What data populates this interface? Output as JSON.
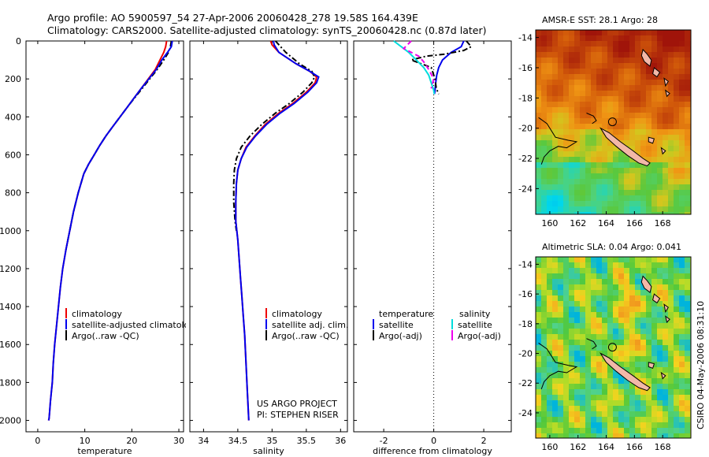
{
  "header": {
    "line1": "Argo profile: AO 5900597_54 27-Apr-2006 20060428_278 19.58S 164.439E",
    "line2": "Climatology: CARS2000. Satellite-adjusted climatology: synTS_20060428.nc (0.87d later)"
  },
  "side_stamp": "CSIRO 04-May-2006 08:31:10",
  "project": {
    "line1": "US ARGO PROJECT",
    "line2": "PI: STEPHEN RISER"
  },
  "chart_data": [
    {
      "id": "temperature",
      "type": "line",
      "xlabel": "temperature",
      "xlim": [
        -2.5,
        31
      ],
      "xticks": [
        0,
        10,
        20,
        30
      ],
      "ylim": [
        2060,
        0
      ],
      "yticks": [
        0,
        200,
        400,
        600,
        800,
        1000,
        1200,
        1400,
        1600,
        1800,
        2000
      ],
      "legend": [
        "climatology",
        "satellite-adjusted climatology",
        "Argo(..raw -QC)"
      ],
      "series": [
        {
          "name": "climatology",
          "color": "#ee0000",
          "dash": "",
          "x": [
            27.4,
            27.2,
            26.8,
            26.0,
            25.0,
            23.5,
            22.0,
            20.5,
            19.0,
            17.5,
            16.0,
            14.5,
            13.2,
            12.0,
            10.8,
            9.8,
            8.6,
            7.6,
            6.8,
            6.0,
            5.3,
            4.8,
            4.4,
            4.0,
            3.6,
            3.3,
            3.1,
            2.9,
            2.7,
            2.55,
            2.4,
            2.3
          ],
          "y": [
            0,
            30,
            60,
            100,
            150,
            200,
            250,
            300,
            350,
            400,
            450,
            500,
            550,
            600,
            650,
            700,
            800,
            900,
            1000,
            1100,
            1200,
            1300,
            1400,
            1500,
            1600,
            1700,
            1800,
            1850,
            1900,
            1950,
            1990,
            2000
          ]
        },
        {
          "name": "satellite-adjusted climatology",
          "color": "#0000ee",
          "dash": "",
          "x": [
            28.6,
            28.4,
            27.6,
            26.4,
            25.2,
            23.6,
            22.0,
            20.5,
            19.0,
            17.5,
            16.0,
            14.5,
            13.2,
            12.0,
            10.8,
            9.8,
            8.6,
            7.6,
            6.8,
            6.0,
            5.3,
            4.8,
            4.4,
            4.0,
            3.6,
            3.3,
            3.1,
            2.9,
            2.7,
            2.55,
            2.4,
            2.3
          ],
          "y": [
            0,
            30,
            60,
            100,
            150,
            200,
            250,
            300,
            350,
            400,
            450,
            500,
            550,
            600,
            650,
            700,
            800,
            900,
            1000,
            1100,
            1200,
            1300,
            1400,
            1500,
            1600,
            1700,
            1800,
            1850,
            1900,
            1950,
            1990,
            2000
          ]
        },
        {
          "name": "Argo(..raw -QC)",
          "color": "#000000",
          "dash": "7,3,2,3",
          "x": [
            28.4,
            28.2,
            27.8,
            26.8,
            25.4,
            23.8,
            22.2,
            20.6,
            19.0,
            17.5,
            16.0,
            14.5,
            13.2,
            12.0,
            10.8,
            9.8,
            8.6,
            7.6,
            6.8,
            6.0
          ],
          "y": [
            0,
            30,
            60,
            100,
            150,
            200,
            250,
            300,
            350,
            400,
            450,
            500,
            550,
            600,
            650,
            700,
            800,
            900,
            1000,
            1100
          ]
        }
      ]
    },
    {
      "id": "salinity",
      "type": "line",
      "xlabel": "salinity",
      "xlim": [
        33.8,
        36.1
      ],
      "xticks": [
        34,
        34.5,
        35,
        35.5,
        36
      ],
      "ylim": [
        2060,
        0
      ],
      "legend": [
        "climatology",
        "satellite adj. clim.",
        "Argo(..raw -QC)"
      ],
      "series": [
        {
          "name": "climatology",
          "color": "#ee0000",
          "dash": "",
          "x": [
            34.98,
            35.0,
            35.1,
            35.35,
            35.55,
            35.65,
            35.63,
            35.5,
            35.3,
            35.1,
            34.9,
            34.75,
            34.62,
            34.55,
            34.5,
            34.48,
            34.47,
            34.47,
            34.5,
            34.52,
            34.54,
            34.56,
            34.58,
            34.6,
            34.62,
            34.64,
            34.66
          ],
          "y": [
            0,
            20,
            60,
            120,
            160,
            190,
            220,
            270,
            330,
            380,
            440,
            500,
            560,
            620,
            680,
            750,
            850,
            950,
            1050,
            1150,
            1250,
            1350,
            1450,
            1550,
            1700,
            1850,
            2000
          ]
        },
        {
          "name": "satellite adj. clim.",
          "color": "#0000ee",
          "dash": "",
          "x": [
            35.02,
            35.03,
            35.1,
            35.35,
            35.55,
            35.68,
            35.65,
            35.52,
            35.32,
            35.12,
            34.92,
            34.76,
            34.63,
            34.55,
            34.5,
            34.48,
            34.47,
            34.47,
            34.5,
            34.52,
            34.54,
            34.56,
            34.58,
            34.6,
            34.62,
            34.64,
            34.66
          ],
          "y": [
            0,
            20,
            60,
            120,
            160,
            190,
            220,
            270,
            330,
            380,
            440,
            500,
            560,
            620,
            680,
            750,
            850,
            950,
            1050,
            1150,
            1250,
            1350,
            1450,
            1550,
            1700,
            1850,
            2000
          ]
        },
        {
          "name": "Argo(..raw -QC)",
          "color": "#000000",
          "dash": "7,3,2,3",
          "x": [
            35.05,
            35.1,
            35.2,
            35.4,
            35.58,
            35.62,
            35.58,
            35.45,
            35.25,
            35.05,
            34.85,
            34.68,
            34.55,
            34.48,
            34.45,
            34.44,
            34.44,
            34.46,
            34.48
          ],
          "y": [
            0,
            20,
            60,
            120,
            160,
            190,
            220,
            270,
            330,
            380,
            440,
            500,
            560,
            620,
            680,
            750,
            850,
            950,
            1000
          ]
        }
      ]
    },
    {
      "id": "difference",
      "type": "line",
      "xlabel": "difference from climatology",
      "xlim": [
        -3.2,
        3.1
      ],
      "xticks": [
        -2,
        0,
        2
      ],
      "ylim": [
        2060,
        0
      ],
      "legend_headers": [
        "temperature",
        "salinity"
      ],
      "legend_temperature": [
        "satellite",
        "Argo(-adj)"
      ],
      "legend_salinity": [
        "satellite",
        "Argo(-adj)"
      ],
      "series": [
        {
          "name": "temperature satellite",
          "color": "#0000ee",
          "dash": "",
          "x": [
            1.2,
            1.1,
            0.7,
            0.35,
            0.2,
            0.12,
            0.08,
            0.05,
            0.03
          ],
          "y": [
            0,
            30,
            60,
            100,
            140,
            180,
            220,
            260,
            280
          ]
        },
        {
          "name": "temperature Argo(-adj)",
          "color": "#000000",
          "dash": "7,3,2,3",
          "x": [
            1.3,
            1.5,
            1.2,
            0.4,
            -0.3,
            -0.6,
            -0.9,
            -0.5,
            -0.1,
            0.05,
            0.1,
            0.2
          ],
          "y": [
            0,
            30,
            50,
            70,
            80,
            90,
            100,
            120,
            140,
            200,
            250,
            280
          ]
        },
        {
          "name": "salinity satellite",
          "color": "#00dddd",
          "dash": "",
          "x": [
            -1.6,
            -1.3,
            -1.0,
            -0.7,
            -0.4,
            -0.2,
            -0.1,
            0.0,
            0.02
          ],
          "y": [
            0,
            30,
            60,
            100,
            140,
            180,
            220,
            260,
            280
          ]
        },
        {
          "name": "salinity Argo(-adj)",
          "color": "#ee00ee",
          "dash": "6,4",
          "x": [
            -0.9,
            -1.2,
            -0.6,
            -0.4,
            -0.2,
            0.0,
            -0.1
          ],
          "y": [
            0,
            40,
            80,
            110,
            150,
            200,
            250
          ]
        }
      ]
    }
  ],
  "maps": [
    {
      "id": "sst-map",
      "title": "AMSR-E SST: 28.1  Argo: 28",
      "lon_ticks": [
        160,
        162,
        164,
        166,
        168
      ],
      "lat_ticks": [
        -14,
        -16,
        -18,
        -20,
        -22,
        -24
      ]
    },
    {
      "id": "sla-map",
      "title": "Altimetric SLA: 0.04  Argo: 0.041",
      "lon_ticks": [
        160,
        162,
        164,
        166,
        168
      ],
      "lat_ticks": [
        -14,
        -16,
        -18,
        -20,
        -22,
        -24
      ]
    }
  ]
}
